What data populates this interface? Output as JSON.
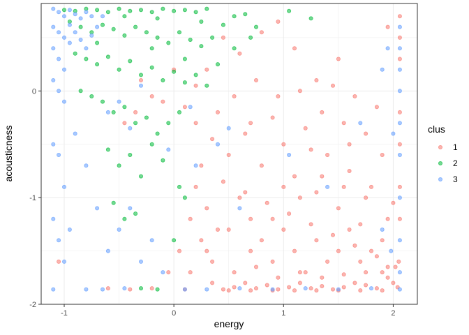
{
  "chart_data": {
    "type": "scatter",
    "title": "",
    "xlabel": "energy",
    "ylabel": "acousticness",
    "xlim": [
      -1.21,
      2.22
    ],
    "ylim": [
      -2.0,
      0.82
    ],
    "x_ticks": [
      -1,
      0,
      1,
      2
    ],
    "x_tick_labels": [
      "-1",
      "0",
      "1",
      "2"
    ],
    "y_ticks": [
      -2,
      -1,
      0
    ],
    "y_tick_labels": [
      "-2",
      "-1",
      "0"
    ],
    "grid": true,
    "point_opacity": 0.55,
    "legend": {
      "title": "clus",
      "position": "right"
    },
    "series": [
      {
        "name": "1",
        "color": "#F8766D",
        "points": [
          [
            0.1,
            -0.15
          ],
          [
            0.2,
            -0.3
          ],
          [
            0.35,
            -0.45
          ],
          [
            0.5,
            -0.6
          ],
          [
            0.65,
            -0.4
          ],
          [
            0.8,
            -0.7
          ],
          [
            0.9,
            -0.25
          ],
          [
            1.0,
            -0.5
          ],
          [
            1.1,
            -0.8
          ],
          [
            1.2,
            -0.35
          ],
          [
            1.3,
            -0.95
          ],
          [
            1.4,
            -0.6
          ],
          [
            1.5,
            -1.1
          ],
          [
            1.6,
            -0.75
          ],
          [
            1.7,
            -1.25
          ],
          [
            1.8,
            -0.9
          ],
          [
            1.9,
            -1.4
          ],
          [
            2.0,
            -1.05
          ],
          [
            2.05,
            -1.6
          ],
          [
            1.95,
            -1.75
          ],
          [
            1.85,
            -1.85
          ],
          [
            1.75,
            -1.82
          ],
          [
            1.65,
            -1.8
          ],
          [
            1.55,
            -1.84
          ],
          [
            1.45,
            -1.86
          ],
          [
            1.35,
            -1.83
          ],
          [
            1.25,
            -1.85
          ],
          [
            1.15,
            -1.8
          ],
          [
            1.05,
            -1.84
          ],
          [
            0.95,
            -1.86
          ],
          [
            0.85,
            -1.82
          ],
          [
            0.75,
            -1.85
          ],
          [
            0.65,
            -1.8
          ],
          [
            0.55,
            -1.84
          ],
          [
            0.45,
            -1.86
          ],
          [
            0.35,
            -1.6
          ],
          [
            0.25,
            -1.4
          ],
          [
            0.15,
            -1.2
          ],
          [
            0.05,
            -1.5
          ],
          [
            -0.05,
            -1.7
          ],
          [
            0.3,
            -1.1
          ],
          [
            0.4,
            -1.3
          ],
          [
            0.6,
            -1.0
          ],
          [
            0.7,
            -1.2
          ],
          [
            0.8,
            -1.4
          ],
          [
            0.9,
            -1.6
          ],
          [
            1.0,
            -1.3
          ],
          [
            1.1,
            -1.5
          ],
          [
            1.2,
            -1.7
          ],
          [
            1.3,
            -1.4
          ],
          [
            1.4,
            -1.6
          ],
          [
            1.5,
            -1.5
          ],
          [
            1.6,
            -1.3
          ],
          [
            1.7,
            -1.6
          ],
          [
            1.8,
            -1.5
          ],
          [
            1.9,
            -1.7
          ],
          [
            2.0,
            -1.8
          ],
          [
            2.06,
            -0.2
          ],
          [
            2.06,
            -0.5
          ],
          [
            2.06,
            -0.9
          ],
          [
            2.06,
            -1.2
          ],
          [
            2.06,
            0.5
          ],
          [
            2.06,
            0.7
          ],
          [
            2.06,
            0.3
          ],
          [
            1.95,
            0.6
          ],
          [
            1.5,
            0.3
          ],
          [
            1.3,
            0.1
          ],
          [
            1.1,
            0.4
          ],
          [
            0.95,
            0.65
          ],
          [
            0.8,
            0.55
          ],
          [
            0.6,
            0.35
          ],
          [
            0.45,
            0.5
          ],
          [
            0.3,
            0.2
          ],
          [
            0.2,
            0.05
          ],
          [
            -0.1,
            -0.1
          ],
          [
            -0.2,
            -0.05
          ],
          [
            -0.35,
            -0.2
          ],
          [
            -0.3,
            0.1
          ],
          [
            -0.45,
            -0.3
          ],
          [
            0.0,
            0.2
          ],
          [
            0.55,
            -0.05
          ],
          [
            0.75,
            0.1
          ],
          [
            0.95,
            -0.05
          ],
          [
            1.15,
            0.0
          ],
          [
            1.35,
            -0.2
          ],
          [
            1.55,
            -0.3
          ],
          [
            1.75,
            -0.4
          ],
          [
            1.85,
            -0.15
          ],
          [
            1.65,
            -0.05
          ],
          [
            1.45,
            0.05
          ],
          [
            0.25,
            -0.7
          ],
          [
            0.45,
            -0.85
          ],
          [
            0.65,
            -0.95
          ],
          [
            0.85,
            -1.05
          ],
          [
            1.05,
            -1.15
          ],
          [
            1.25,
            -1.25
          ],
          [
            1.45,
            -1.35
          ],
          [
            1.65,
            -1.45
          ],
          [
            1.85,
            -1.55
          ],
          [
            2.02,
            -1.65
          ],
          [
            -0.6,
            -1.85
          ],
          [
            -0.4,
            -1.86
          ],
          [
            -0.2,
            -1.85
          ],
          [
            0.1,
            -1.86
          ],
          [
            -1.05,
            -1.6
          ],
          [
            0.2,
            -0.9
          ],
          [
            0.4,
            -0.2
          ],
          [
            0.7,
            -0.3
          ],
          [
            1.0,
            -0.9
          ],
          [
            1.25,
            -0.55
          ],
          [
            1.55,
            -0.9
          ],
          [
            1.75,
            -1.0
          ],
          [
            1.95,
            -1.2
          ],
          [
            1.9,
            -0.6
          ],
          [
            1.6,
            -0.5
          ],
          [
            1.35,
            -0.8
          ],
          [
            1.15,
            -1.0
          ],
          [
            0.9,
            -1.2
          ],
          [
            0.7,
            -1.5
          ],
          [
            0.5,
            -1.3
          ],
          [
            0.3,
            -1.5
          ],
          [
            0.15,
            -1.7
          ],
          [
            0.35,
            -1.8
          ],
          [
            0.55,
            -1.7
          ],
          [
            0.75,
            -1.65
          ],
          [
            0.95,
            -1.75
          ],
          [
            1.15,
            -1.7
          ],
          [
            1.35,
            -1.75
          ],
          [
            1.55,
            -1.72
          ],
          [
            1.75,
            -1.7
          ],
          [
            1.95,
            -1.65
          ],
          [
            2.04,
            -1.84
          ],
          [
            1.9,
            -1.87
          ],
          [
            1.7,
            -1.87
          ],
          [
            1.5,
            -1.87
          ],
          [
            1.3,
            -1.87
          ],
          [
            1.1,
            -1.87
          ],
          [
            0.9,
            -1.87
          ],
          [
            0.7,
            -1.87
          ],
          [
            0.5,
            -1.87
          ]
        ]
      },
      {
        "name": "2",
        "color": "#00BA38",
        "points": [
          [
            -1.0,
            0.76
          ],
          [
            -0.9,
            0.75
          ],
          [
            -0.8,
            0.77
          ],
          [
            -0.7,
            0.76
          ],
          [
            -0.6,
            0.74
          ],
          [
            -0.5,
            0.77
          ],
          [
            -0.4,
            0.75
          ],
          [
            -0.3,
            0.76
          ],
          [
            -0.2,
            0.74
          ],
          [
            -0.1,
            0.77
          ],
          [
            0.0,
            0.75
          ],
          [
            0.1,
            0.76
          ],
          [
            0.2,
            0.74
          ],
          [
            0.3,
            0.77
          ],
          [
            -0.95,
            0.65
          ],
          [
            -0.85,
            0.6
          ],
          [
            -0.75,
            0.55
          ],
          [
            -0.65,
            0.62
          ],
          [
            -0.55,
            0.58
          ],
          [
            -0.45,
            0.52
          ],
          [
            -0.35,
            0.6
          ],
          [
            -0.25,
            0.55
          ],
          [
            -0.15,
            0.5
          ],
          [
            -0.05,
            0.45
          ],
          [
            0.05,
            0.55
          ],
          [
            0.15,
            0.48
          ],
          [
            0.25,
            0.42
          ],
          [
            0.35,
            0.5
          ],
          [
            0.45,
            0.62
          ],
          [
            0.55,
            0.7
          ],
          [
            0.65,
            0.72
          ],
          [
            0.75,
            0.6
          ],
          [
            1.05,
            0.75
          ],
          [
            1.25,
            0.68
          ],
          [
            -0.9,
            0.35
          ],
          [
            -0.8,
            0.3
          ],
          [
            -0.7,
            0.25
          ],
          [
            -0.6,
            0.32
          ],
          [
            -0.5,
            0.2
          ],
          [
            -0.4,
            0.28
          ],
          [
            -0.3,
            0.15
          ],
          [
            -0.2,
            0.22
          ],
          [
            -0.1,
            0.1
          ],
          [
            0.0,
            0.18
          ],
          [
            0.1,
            0.08
          ],
          [
            0.2,
            0.15
          ],
          [
            0.3,
            0.05
          ],
          [
            -0.85,
            0.0
          ],
          [
            -0.75,
            -0.05
          ],
          [
            -0.65,
            -0.1
          ],
          [
            -0.55,
            -0.2
          ],
          [
            -0.45,
            -0.15
          ],
          [
            -0.35,
            -0.3
          ],
          [
            -0.25,
            -0.25
          ],
          [
            -0.15,
            -0.4
          ],
          [
            -0.05,
            -0.3
          ],
          [
            0.05,
            -0.2
          ],
          [
            -0.6,
            -0.55
          ],
          [
            -0.5,
            -0.7
          ],
          [
            -0.4,
            -0.6
          ],
          [
            -0.3,
            -0.8
          ],
          [
            -0.2,
            -0.5
          ],
          [
            -0.1,
            -0.65
          ],
          [
            0.05,
            -0.9
          ],
          [
            -0.55,
            -1.05
          ],
          [
            -0.45,
            -1.2
          ],
          [
            -0.35,
            -1.15
          ],
          [
            0.1,
            -1.0
          ],
          [
            -0.3,
            -1.85
          ],
          [
            -0.15,
            -1.86
          ],
          [
            0.0,
            -1.4
          ],
          [
            -0.7,
            0.45
          ],
          [
            -0.2,
            0.4
          ],
          [
            0.1,
            0.3
          ],
          [
            0.4,
            0.25
          ],
          [
            0.55,
            0.4
          ],
          [
            0.7,
            0.5
          ],
          [
            0.25,
            0.65
          ],
          [
            -0.15,
            0.68
          ],
          [
            -0.45,
            0.7
          ]
        ]
      },
      {
        "name": "3",
        "color": "#619CFF",
        "points": [
          [
            -1.1,
            0.77
          ],
          [
            -1.05,
            0.74
          ],
          [
            -1.0,
            0.7
          ],
          [
            -0.95,
            0.76
          ],
          [
            -0.9,
            0.72
          ],
          [
            -0.85,
            0.68
          ],
          [
            -0.8,
            0.74
          ],
          [
            -0.75,
            0.7
          ],
          [
            -1.1,
            0.6
          ],
          [
            -1.05,
            0.55
          ],
          [
            -1.0,
            0.5
          ],
          [
            -0.95,
            0.45
          ],
          [
            -1.1,
            0.4
          ],
          [
            -1.05,
            0.3
          ],
          [
            -1.0,
            0.2
          ],
          [
            -1.1,
            0.1
          ],
          [
            -1.05,
            0.0
          ],
          [
            -1.0,
            -0.1
          ],
          [
            -0.95,
            0.62
          ],
          [
            -0.9,
            0.55
          ],
          [
            -0.85,
            0.48
          ],
          [
            -0.8,
            0.4
          ],
          [
            -0.75,
            0.52
          ],
          [
            -0.7,
            0.6
          ],
          [
            -0.65,
            0.7
          ],
          [
            -1.1,
            -0.5
          ],
          [
            -1.05,
            -0.6
          ],
          [
            -1.0,
            -0.9
          ],
          [
            -1.1,
            -1.2
          ],
          [
            -1.05,
            -1.4
          ],
          [
            -1.0,
            -1.6
          ],
          [
            -1.1,
            -1.86
          ],
          [
            -0.95,
            -1.3
          ],
          [
            -0.9,
            -0.4
          ],
          [
            -0.8,
            -0.7
          ],
          [
            -0.7,
            -1.1
          ],
          [
            -0.6,
            -1.5
          ],
          [
            -0.5,
            -1.3
          ],
          [
            -0.4,
            -1.1
          ],
          [
            -0.3,
            -1.6
          ],
          [
            -0.2,
            -1.4
          ],
          [
            -0.1,
            -1.7
          ],
          [
            -0.6,
            -0.2
          ],
          [
            -0.5,
            -0.1
          ],
          [
            -0.4,
            -0.35
          ],
          [
            -0.8,
            -1.86
          ],
          [
            -0.65,
            -1.86
          ],
          [
            -0.45,
            -1.85
          ],
          [
            0.1,
            -1.86
          ],
          [
            0.3,
            -1.86
          ],
          [
            0.6,
            -1.85
          ],
          [
            0.9,
            -1.86
          ],
          [
            1.2,
            -1.85
          ],
          [
            1.5,
            -1.86
          ],
          [
            1.8,
            -1.85
          ],
          [
            2.06,
            -1.86
          ],
          [
            2.06,
            -1.7
          ],
          [
            2.06,
            -1.4
          ],
          [
            2.06,
            -1.0
          ],
          [
            2.06,
            -0.6
          ],
          [
            2.06,
            -0.3
          ],
          [
            2.06,
            0.0
          ],
          [
            2.06,
            0.2
          ],
          [
            2.06,
            0.4
          ],
          [
            2.06,
            0.6
          ],
          [
            1.95,
            0.4
          ],
          [
            1.9,
            0.2
          ],
          [
            2.0,
            -0.4
          ],
          [
            1.9,
            -1.3
          ],
          [
            1.98,
            -1.5
          ],
          [
            0.2,
            -0.7
          ],
          [
            0.4,
            -0.5
          ],
          [
            0.6,
            -1.1
          ],
          [
            1.05,
            -0.6
          ],
          [
            1.4,
            -0.9
          ],
          [
            1.7,
            -0.3
          ],
          [
            -0.3,
            0.05
          ],
          [
            -0.05,
            -0.55
          ],
          [
            0.15,
            -0.15
          ],
          [
            0.5,
            -0.35
          ]
        ]
      }
    ]
  }
}
